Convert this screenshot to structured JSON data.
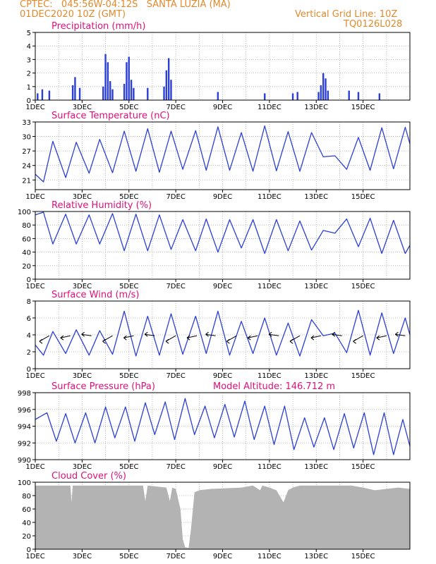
{
  "header": {
    "left_line1": "CPTEC:   045:56W-04:12S   SANTA LUZIA (MA)",
    "left_line2": "01DEC2020 10Z (GMT)",
    "right_line1": "Vertical Grid Line: 10Z",
    "right_line2": "TQ0126L028"
  },
  "colors": {
    "header": "#e08a2e",
    "panel_title": "#e0107a",
    "series": "#2b3fd6",
    "cloud": "#b3b3b3",
    "grid": "#a8a8a8"
  },
  "x_axis": {
    "start": "01DEC2020 10Z",
    "end": "16DEC2020 10Z",
    "ticks": [
      "1DEC",
      "3DEC",
      "5DEC",
      "7DEC",
      "9DEC",
      "11DEC",
      "13DEC",
      "15DEC"
    ],
    "vertical_grid": "daily at 10Z"
  },
  "chart_data": [
    {
      "type": "bar",
      "title": "Precipitation (mm/h)",
      "ylim": [
        0,
        5
      ],
      "yticks": [
        "0",
        "1",
        "2",
        "3",
        "4",
        "5"
      ],
      "series": [
        {
          "values": [
            [
              0.1,
              0.5
            ],
            [
              0.3,
              0.8
            ],
            [
              0.6,
              0.7
            ],
            [
              1.6,
              1.1
            ],
            [
              1.7,
              1.7
            ],
            [
              1.9,
              0.9
            ],
            [
              2.9,
              1.0
            ],
            [
              3.0,
              3.4
            ],
            [
              3.1,
              2.8
            ],
            [
              3.2,
              1.4
            ],
            [
              3.3,
              0.8
            ],
            [
              3.8,
              1.2
            ],
            [
              3.9,
              2.8
            ],
            [
              4.0,
              3.2
            ],
            [
              4.1,
              1.5
            ],
            [
              4.2,
              0.9
            ],
            [
              4.8,
              0.9
            ],
            [
              5.5,
              1.0
            ],
            [
              5.6,
              2.2
            ],
            [
              5.7,
              3.1
            ],
            [
              5.8,
              1.5
            ],
            [
              7.8,
              0.6
            ],
            [
              9.8,
              0.5
            ],
            [
              11.0,
              0.5
            ],
            [
              11.2,
              0.6
            ],
            [
              12.1,
              0.6
            ],
            [
              12.2,
              1.1
            ],
            [
              12.3,
              2.0
            ],
            [
              12.4,
              1.6
            ],
            [
              12.5,
              0.7
            ],
            [
              13.4,
              0.7
            ],
            [
              13.8,
              0.6
            ],
            [
              14.7,
              0.5
            ]
          ]
        }
      ]
    },
    {
      "type": "line",
      "title": "Surface Temperature (nC)",
      "ylim": [
        19,
        33
      ],
      "yticks": [
        "21",
        "24",
        "27",
        "30",
        "33"
      ],
      "series": [
        {
          "values": [
            [
              0,
              22.2
            ],
            [
              0.35,
              20.6
            ],
            [
              0.75,
              29.0
            ],
            [
              1.3,
              21.5
            ],
            [
              1.75,
              28.8
            ],
            [
              2.3,
              22.4
            ],
            [
              2.75,
              29.4
            ],
            [
              3.3,
              22.5
            ],
            [
              3.8,
              31.1
            ],
            [
              4.3,
              22.8
            ],
            [
              4.8,
              31.6
            ],
            [
              5.3,
              22.6
            ],
            [
              5.8,
              31.1
            ],
            [
              6.3,
              23.2
            ],
            [
              6.85,
              31.2
            ],
            [
              7.3,
              23.0
            ],
            [
              7.8,
              32.0
            ],
            [
              8.3,
              23.0
            ],
            [
              8.8,
              30.8
            ],
            [
              9.3,
              22.8
            ],
            [
              9.8,
              32.2
            ],
            [
              10.3,
              22.9
            ],
            [
              10.8,
              31.0
            ],
            [
              11.3,
              22.8
            ],
            [
              11.8,
              30.8
            ],
            [
              12.3,
              25.8
            ],
            [
              12.8,
              26.0
            ],
            [
              13.3,
              23.2
            ],
            [
              13.8,
              29.8
            ],
            [
              14.3,
              23.0
            ],
            [
              14.8,
              31.8
            ],
            [
              15.3,
              23.3
            ],
            [
              15.8,
              31.9
            ],
            [
              16,
              28.5
            ]
          ]
        }
      ]
    },
    {
      "type": "line",
      "title": "Relative Humidity (%)",
      "ylim": [
        0,
        100
      ],
      "yticks": [
        "0",
        "20",
        "40",
        "60",
        "80",
        "100"
      ],
      "series": [
        {
          "values": [
            [
              0,
              95
            ],
            [
              0.35,
              99
            ],
            [
              0.75,
              52
            ],
            [
              1.3,
              96
            ],
            [
              1.75,
              52
            ],
            [
              2.3,
              95
            ],
            [
              2.75,
              52
            ],
            [
              3.3,
              97
            ],
            [
              3.8,
              42
            ],
            [
              4.3,
              96
            ],
            [
              4.8,
              42
            ],
            [
              5.3,
              95
            ],
            [
              5.8,
              44
            ],
            [
              6.3,
              88
            ],
            [
              6.85,
              42
            ],
            [
              7.3,
              89
            ],
            [
              7.8,
              40
            ],
            [
              8.3,
              88
            ],
            [
              8.8,
              46
            ],
            [
              9.3,
              88
            ],
            [
              9.8,
              38
            ],
            [
              10.3,
              88
            ],
            [
              10.8,
              42
            ],
            [
              11.3,
              86
            ],
            [
              11.8,
              43
            ],
            [
              12.3,
              72
            ],
            [
              12.8,
              68
            ],
            [
              13.3,
              89
            ],
            [
              13.8,
              48
            ],
            [
              14.3,
              90
            ],
            [
              14.8,
              38
            ],
            [
              15.3,
              87
            ],
            [
              15.8,
              38
            ],
            [
              16,
              50
            ]
          ]
        }
      ]
    },
    {
      "type": "line",
      "title": "Surface Wind (m/s)",
      "ylim": [
        0,
        8
      ],
      "yticks": [
        "0",
        "2",
        "4",
        "6",
        "8"
      ],
      "series": [
        {
          "values": [
            [
              0,
              2.8
            ],
            [
              0.35,
              1.6
            ],
            [
              0.75,
              4.4
            ],
            [
              1.3,
              1.8
            ],
            [
              1.75,
              4.6
            ],
            [
              2.3,
              1.6
            ],
            [
              2.75,
              4.5
            ],
            [
              3.3,
              1.7
            ],
            [
              3.8,
              6.8
            ],
            [
              4.3,
              1.5
            ],
            [
              4.8,
              6.2
            ],
            [
              5.3,
              1.6
            ],
            [
              5.8,
              6.5
            ],
            [
              6.3,
              1.7
            ],
            [
              6.85,
              6.2
            ],
            [
              7.3,
              1.8
            ],
            [
              7.8,
              6.8
            ],
            [
              8.3,
              1.6
            ],
            [
              8.8,
              5.6
            ],
            [
              9.3,
              1.8
            ],
            [
              9.8,
              6.0
            ],
            [
              10.3,
              1.6
            ],
            [
              10.8,
              5.4
            ],
            [
              11.3,
              1.5
            ],
            [
              11.8,
              5.8
            ],
            [
              12.3,
              3.9
            ],
            [
              12.8,
              4.2
            ],
            [
              13.3,
              1.9
            ],
            [
              13.8,
              6.9
            ],
            [
              14.3,
              1.6
            ],
            [
              14.8,
              6.6
            ],
            [
              15.3,
              1.8
            ],
            [
              15.8,
              6.0
            ],
            [
              16,
              4.0
            ]
          ]
        }
      ],
      "wind_barb_x": [
        0.6,
        1.5,
        2.4,
        3.3,
        4.2,
        5.1,
        6.0,
        6.9,
        7.7,
        8.6,
        9.5,
        10.4,
        11.3,
        12.2,
        13.1,
        14.0,
        15.0,
        15.8
      ]
    },
    {
      "type": "line",
      "title": "Surface Pressure (hPa)",
      "subtitle": "Model Altitude: 146.712 m",
      "ylim": [
        990,
        998
      ],
      "yticks": [
        "990",
        "992",
        "994",
        "996",
        "998"
      ],
      "series": [
        {
          "values": [
            [
              0,
              994.8
            ],
            [
              0.25,
              995.2
            ],
            [
              0.5,
              995.6
            ],
            [
              0.9,
              992.2
            ],
            [
              1.3,
              995.5
            ],
            [
              1.7,
              992.0
            ],
            [
              2.15,
              995.6
            ],
            [
              2.55,
              992.0
            ],
            [
              3.0,
              996.3
            ],
            [
              3.4,
              992.6
            ],
            [
              3.85,
              996.3
            ],
            [
              4.25,
              992.2
            ],
            [
              4.7,
              996.8
            ],
            [
              5.1,
              993.0
            ],
            [
              5.55,
              996.9
            ],
            [
              5.95,
              992.4
            ],
            [
              6.4,
              997.3
            ],
            [
              6.8,
              993.0
            ],
            [
              7.25,
              996.4
            ],
            [
              7.65,
              992.6
            ],
            [
              8.1,
              996.6
            ],
            [
              8.5,
              992.7
            ],
            [
              8.95,
              997.0
            ],
            [
              9.35,
              992.4
            ],
            [
              9.8,
              996.4
            ],
            [
              10.2,
              991.8
            ],
            [
              10.65,
              996.4
            ],
            [
              11.05,
              991.2
            ],
            [
              11.5,
              995.0
            ],
            [
              11.9,
              991.5
            ],
            [
              12.35,
              995.0
            ],
            [
              12.75,
              991.2
            ],
            [
              13.2,
              995.5
            ],
            [
              13.6,
              991.4
            ],
            [
              14.05,
              995.6
            ],
            [
              14.45,
              990.6
            ],
            [
              14.9,
              995.6
            ],
            [
              15.3,
              990.6
            ],
            [
              15.7,
              994.8
            ],
            [
              16,
              991.6
            ]
          ]
        }
      ]
    },
    {
      "type": "area",
      "title": "Cloud Cover (%)",
      "ylim": [
        0,
        100
      ],
      "yticks": [
        "0",
        "20",
        "40",
        "60",
        "80",
        "100"
      ],
      "series": [
        {
          "values": [
            [
              0,
              95
            ],
            [
              1.5,
              95
            ],
            [
              1.55,
              70
            ],
            [
              1.6,
              95
            ],
            [
              4.6,
              95
            ],
            [
              4.7,
              72
            ],
            [
              4.8,
              95
            ],
            [
              5.6,
              92
            ],
            [
              5.75,
              72
            ],
            [
              5.85,
              92
            ],
            [
              6.0,
              90
            ],
            [
              6.2,
              60
            ],
            [
              6.3,
              15
            ],
            [
              6.4,
              3
            ],
            [
              6.55,
              2
            ],
            [
              6.65,
              30
            ],
            [
              6.8,
              85
            ],
            [
              7.0,
              88
            ],
            [
              7.5,
              90
            ],
            [
              8.8,
              92
            ],
            [
              9.3,
              95
            ],
            [
              9.6,
              88
            ],
            [
              9.7,
              95
            ],
            [
              10.0,
              92
            ],
            [
              10.3,
              88
            ],
            [
              10.6,
              70
            ],
            [
              10.8,
              88
            ],
            [
              11.0,
              92
            ],
            [
              11.3,
              95
            ],
            [
              12.0,
              95
            ],
            [
              12.5,
              95
            ],
            [
              13.5,
              95
            ],
            [
              14.0,
              92
            ],
            [
              14.5,
              88
            ],
            [
              15.0,
              90
            ],
            [
              15.5,
              92
            ],
            [
              16,
              90
            ]
          ]
        }
      ]
    }
  ]
}
